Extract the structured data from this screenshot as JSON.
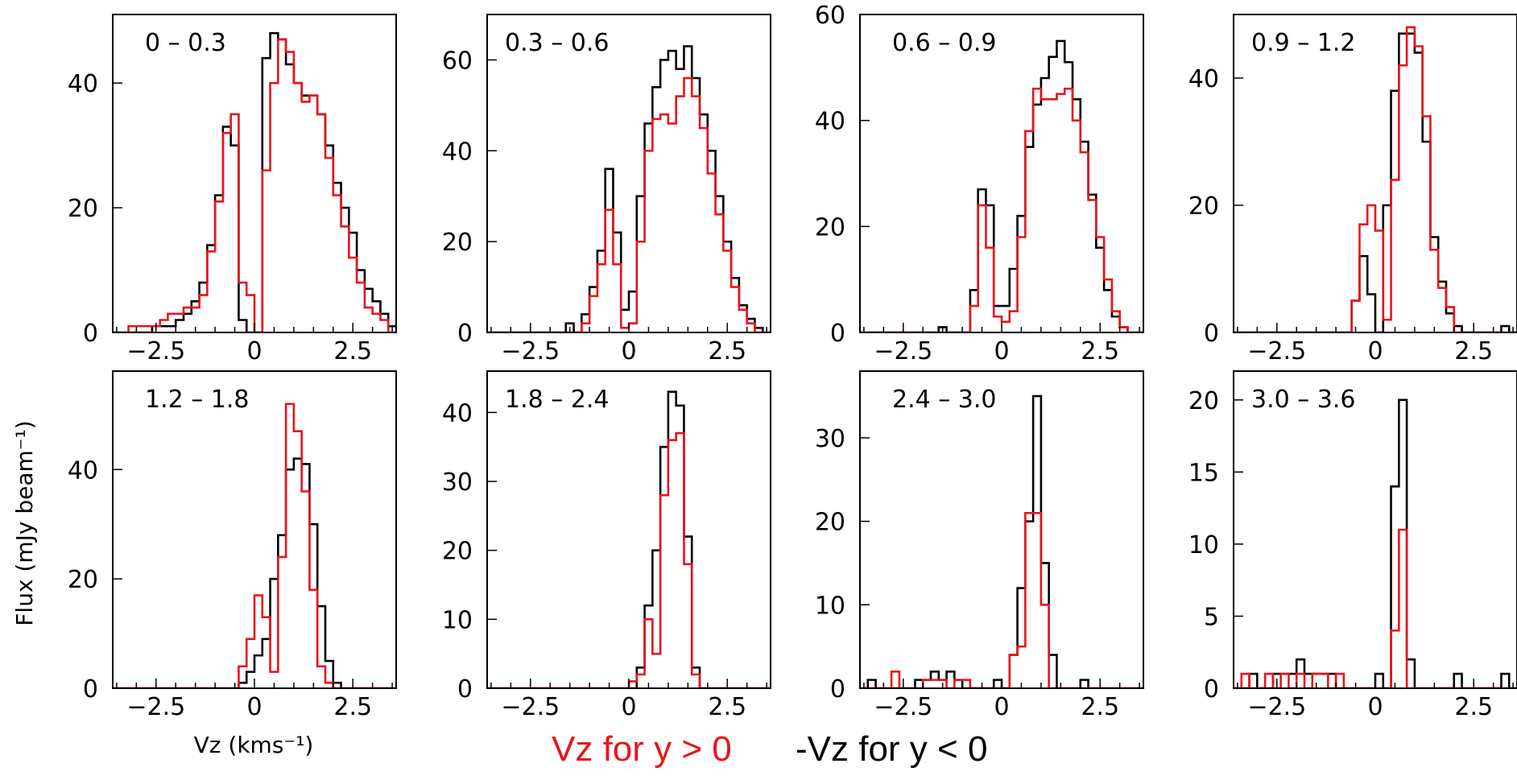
{
  "chart_data": [
    {
      "type": "histogram",
      "panel_label": "0 – 0.3",
      "xlim": [
        -3.6,
        3.6
      ],
      "ylim": [
        0,
        51
      ],
      "yticks": [
        0,
        20,
        40
      ],
      "xticks": [
        -2.5,
        0,
        2.5
      ],
      "x_edges_start": -3.6,
      "bin_width": 0.2,
      "series": [
        {
          "color": "#000000",
          "values": [
            0,
            0,
            0,
            0,
            0,
            1,
            1,
            1,
            2,
            3,
            5,
            8,
            14,
            22,
            33,
            30,
            2,
            0,
            0,
            44,
            48,
            47,
            43,
            40,
            38,
            38,
            35,
            30,
            24,
            20,
            16,
            10,
            7,
            5,
            3,
            1
          ]
        },
        {
          "color": "#e8141c",
          "values": [
            0,
            0,
            1,
            1,
            1,
            1,
            2,
            3,
            3,
            4,
            4,
            6,
            13,
            21,
            32,
            35,
            8,
            6,
            0,
            26,
            40,
            47,
            45,
            40,
            37,
            38,
            35,
            28,
            22,
            17,
            12,
            8,
            4,
            3,
            2,
            0
          ]
        }
      ]
    },
    {
      "type": "histogram",
      "panel_label": "0.3 – 0.6",
      "xlim": [
        -3.6,
        3.6
      ],
      "ylim": [
        0,
        70
      ],
      "yticks": [
        0,
        20,
        40,
        60
      ],
      "xticks": [
        -2.5,
        0,
        2.5
      ],
      "x_edges_start": -3.6,
      "bin_width": 0.2,
      "series": [
        {
          "color": "#000000",
          "values": [
            0,
            0,
            0,
            0,
            0,
            0,
            0,
            0,
            0,
            0,
            2,
            0,
            4,
            10,
            18,
            36,
            22,
            5,
            9,
            30,
            46,
            54,
            60,
            62,
            58,
            63,
            56,
            48,
            40,
            30,
            20,
            12,
            6,
            3,
            1,
            0
          ]
        },
        {
          "color": "#e8141c",
          "values": [
            0,
            0,
            0,
            0,
            0,
            0,
            0,
            0,
            0,
            0,
            0,
            0,
            2,
            8,
            15,
            27,
            15,
            1,
            2,
            20,
            40,
            47,
            48,
            46,
            52,
            56,
            52,
            45,
            35,
            26,
            18,
            10,
            5,
            2,
            0,
            0
          ]
        }
      ]
    },
    {
      "type": "histogram",
      "panel_label": "0.6 – 0.9",
      "xlim": [
        -3.6,
        3.6
      ],
      "ylim": [
        0,
        60
      ],
      "yticks": [
        0,
        20,
        40,
        60
      ],
      "xticks": [
        -2.5,
        0,
        2.5
      ],
      "x_edges_start": -3.6,
      "bin_width": 0.2,
      "series": [
        {
          "color": "#000000",
          "values": [
            0,
            0,
            0,
            0,
            0,
            0,
            0,
            0,
            0,
            0,
            1,
            0,
            0,
            0,
            8,
            27,
            24,
            5,
            5,
            12,
            22,
            35,
            43,
            48,
            52,
            55,
            51,
            44,
            36,
            26,
            16,
            8,
            3,
            1,
            0,
            0
          ]
        },
        {
          "color": "#e8141c",
          "values": [
            0,
            0,
            0,
            0,
            0,
            0,
            0,
            0,
            0,
            0,
            0,
            0,
            0,
            0,
            5,
            24,
            16,
            3,
            2,
            4,
            18,
            38,
            46,
            44,
            44,
            45,
            46,
            40,
            34,
            25,
            18,
            10,
            4,
            1,
            0,
            0
          ]
        }
      ]
    },
    {
      "type": "histogram",
      "panel_label": "0.9 – 1.2",
      "xlim": [
        -3.6,
        3.6
      ],
      "ylim": [
        0,
        50
      ],
      "yticks": [
        0,
        20,
        40
      ],
      "xticks": [
        -2.5,
        0,
        2.5
      ],
      "x_edges_start": -3.6,
      "bin_width": 0.2,
      "series": [
        {
          "color": "#000000",
          "values": [
            0,
            0,
            0,
            0,
            0,
            0,
            0,
            0,
            0,
            0,
            0,
            0,
            0,
            0,
            0,
            5,
            12,
            6,
            0,
            20,
            38,
            47,
            47,
            44,
            30,
            15,
            8,
            3,
            1,
            0,
            0,
            0,
            0,
            0,
            1,
            0
          ]
        },
        {
          "color": "#e8141c",
          "values": [
            0,
            0,
            0,
            0,
            0,
            0,
            0,
            0,
            0,
            0,
            0,
            0,
            0,
            0,
            0,
            5,
            17,
            20,
            16,
            2,
            24,
            42,
            48,
            45,
            34,
            13,
            7,
            4,
            0,
            0,
            0,
            0,
            0,
            0,
            0,
            0
          ]
        }
      ]
    },
    {
      "type": "histogram",
      "panel_label": "1.2 – 1.8",
      "xlim": [
        -3.6,
        3.6
      ],
      "ylim": [
        0,
        58
      ],
      "yticks": [
        0,
        20,
        40
      ],
      "xticks": [
        -2.5,
        0,
        2.5
      ],
      "x_edges_start": -3.6,
      "bin_width": 0.2,
      "series": [
        {
          "color": "#000000",
          "values": [
            0,
            0,
            0,
            0,
            0,
            0,
            0,
            0,
            0,
            0,
            0,
            0,
            0,
            0,
            0,
            0,
            1,
            3,
            6,
            9,
            20,
            28,
            40,
            42,
            41,
            30,
            15,
            5,
            1,
            0,
            0,
            0,
            0,
            0,
            0,
            0
          ]
        },
        {
          "color": "#e8141c",
          "values": [
            0,
            0,
            0,
            0,
            0,
            0,
            0,
            0,
            0,
            0,
            0,
            0,
            0,
            0,
            0,
            0,
            4,
            9,
            17,
            13,
            3,
            24,
            52,
            47,
            36,
            18,
            4,
            1,
            0,
            0,
            0,
            0,
            0,
            0,
            0,
            0
          ]
        }
      ]
    },
    {
      "type": "histogram",
      "panel_label": "1.8 – 2.4",
      "xlim": [
        -3.6,
        3.6
      ],
      "ylim": [
        0,
        46
      ],
      "yticks": [
        0,
        10,
        20,
        30,
        40
      ],
      "xticks": [
        -2.5,
        0,
        2.5
      ],
      "x_edges_start": -3.6,
      "bin_width": 0.2,
      "series": [
        {
          "color": "#000000",
          "values": [
            0,
            0,
            0,
            0,
            0,
            0,
            0,
            0,
            0,
            0,
            0,
            0,
            0,
            0,
            0,
            0,
            0,
            0,
            0,
            3,
            12,
            20,
            35,
            43,
            41,
            22,
            3,
            0,
            0,
            0,
            0,
            0,
            0,
            0,
            0,
            0
          ]
        },
        {
          "color": "#e8141c",
          "values": [
            0,
            0,
            0,
            0,
            0,
            0,
            0,
            0,
            0,
            0,
            0,
            0,
            0,
            0,
            0,
            0,
            0,
            0,
            1,
            2,
            10,
            5,
            28,
            36,
            37,
            18,
            2,
            0,
            0,
            0,
            0,
            0,
            0,
            0,
            0,
            0
          ]
        }
      ]
    },
    {
      "type": "histogram",
      "panel_label": "2.4 – 3.0",
      "xlim": [
        -3.6,
        3.6
      ],
      "ylim": [
        0,
        38
      ],
      "yticks": [
        0,
        10,
        20,
        30
      ],
      "xticks": [
        -2.5,
        0,
        2.5
      ],
      "x_edges_start": -3.6,
      "bin_width": 0.2,
      "series": [
        {
          "color": "#000000",
          "values": [
            0,
            1,
            0,
            0,
            0,
            0,
            0,
            1,
            1,
            2,
            1,
            2,
            1,
            0,
            0,
            0,
            0,
            1,
            0,
            4,
            12,
            20,
            35,
            15,
            4,
            0,
            0,
            0,
            1,
            0,
            0,
            0,
            0,
            0,
            0,
            0
          ]
        },
        {
          "color": "#e8141c",
          "values": [
            0,
            0,
            0,
            0,
            2,
            0,
            0,
            0,
            1,
            1,
            1,
            0,
            1,
            1,
            0,
            0,
            0,
            0,
            0,
            4,
            5,
            21,
            21,
            10,
            0,
            0,
            0,
            0,
            0,
            0,
            0,
            0,
            0,
            0,
            0,
            0
          ]
        }
      ]
    },
    {
      "type": "histogram",
      "panel_label": "3.0 – 3.6",
      "xlim": [
        -3.6,
        3.6
      ],
      "ylim": [
        0,
        22
      ],
      "yticks": [
        0,
        5,
        10,
        15,
        20
      ],
      "xticks": [
        -2.5,
        0,
        2.5
      ],
      "x_edges_start": -3.6,
      "bin_width": 0.2,
      "series": [
        {
          "color": "#000000",
          "values": [
            0,
            0,
            1,
            0,
            0,
            1,
            1,
            1,
            2,
            1,
            1,
            1,
            1,
            0,
            0,
            0,
            0,
            0,
            1,
            0,
            14,
            20,
            2,
            0,
            0,
            0,
            0,
            0,
            1,
            0,
            0,
            0,
            0,
            0,
            1,
            0
          ]
        },
        {
          "color": "#e8141c",
          "values": [
            0,
            1,
            0,
            0,
            1,
            0,
            1,
            0,
            1,
            0,
            1,
            1,
            0,
            1,
            0,
            0,
            0,
            0,
            0,
            0,
            4,
            11,
            0,
            0,
            0,
            0,
            0,
            0,
            0,
            0,
            0,
            0,
            0,
            0,
            0,
            0
          ]
        }
      ]
    }
  ],
  "labels": {
    "y_title": "Flux (mJy beam⁻¹)",
    "x_title": "Vz (kms⁻¹)",
    "legend_red": "Vz for y > 0",
    "legend_black": "-Vz for y < 0"
  },
  "colors": {
    "red": "#e8141c",
    "black": "#000000"
  }
}
